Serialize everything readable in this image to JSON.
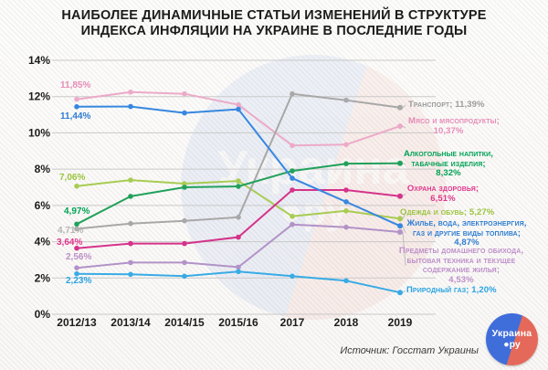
{
  "title": {
    "line1": "НАИБОЛЕЕ ДИНАМИЧНЫЕ СТАТЬИ ИЗМЕНЕНИЙ В СТРУКТУРЕ",
    "line2": "ИНДЕКСА ИНФЛЯЦИИ НА УКРАИНЕ В ПОСЛЕДНИЕ ГОДЫ"
  },
  "source": "Источник: Госстат Украины",
  "logo": {
    "line1": "Украина",
    "line2": "●ру",
    "blue": "#3f6edb",
    "coral": "#e4695a"
  },
  "watermark": {
    "line1": "Украина",
    "line2": "●ру"
  },
  "chart_data": {
    "type": "line",
    "categories": [
      "2012/13",
      "2013/14",
      "2014/15",
      "2015/16",
      "2017",
      "2018",
      "2019"
    ],
    "yticks": [
      "0%",
      "2%",
      "4%",
      "6%",
      "8%",
      "10%",
      "12%",
      "14%"
    ],
    "ylim": [
      0,
      14
    ],
    "ytick_step": 2,
    "grid": "horizontal",
    "grid_color": "#c9c9c9",
    "axis_text_color": "#1c1c1c",
    "legend_position": "right-of-lines",
    "series": [
      {
        "name": "Транспорт",
        "color": "#a8a8a8",
        "text_color": "#9b9b9b",
        "start_color": "#b5b5b5",
        "values": [
          4.71,
          5.0,
          5.15,
          5.35,
          12.15,
          11.8,
          11.39
        ],
        "start_label": "4,71%",
        "end_label_lines": [
          "Транспорт; 11,39%"
        ]
      },
      {
        "name": "Мясо и мясопродукты",
        "color": "#ecaac8",
        "text_color": "#e68cb8",
        "start_color": "#e68cb8",
        "values": [
          11.85,
          12.25,
          12.15,
          11.55,
          9.3,
          9.35,
          10.37
        ],
        "start_label": "11,85%",
        "end_label_lines": [
          "Мясо и мясопродукты;",
          "10,37%"
        ]
      },
      {
        "name": "Алкогольные напитки, табачные изделия",
        "color": "#22a15b",
        "text_color": "#00a155",
        "start_color": "#00a155",
        "values": [
          4.97,
          6.5,
          7.0,
          7.05,
          7.9,
          8.3,
          8.32
        ],
        "start_label": "4,97%",
        "end_label_lines": [
          "Алкогольные напитки,",
          "табачные изделия;",
          "8,32%"
        ]
      },
      {
        "name": "Охрана здоровья",
        "color": "#d5338b",
        "text_color": "#e0368c",
        "start_color": "#e0368c",
        "values": [
          3.64,
          3.9,
          3.9,
          4.25,
          6.85,
          6.85,
          6.51
        ],
        "start_label": "3,64%",
        "end_label_lines": [
          "Охрана здоровья;",
          "6,51%"
        ]
      },
      {
        "name": "Одежда и обувь",
        "color": "#a8cc52",
        "text_color": "#9ac43e",
        "start_color": "#9ac43e",
        "values": [
          7.06,
          7.4,
          7.2,
          7.35,
          5.4,
          5.7,
          5.27
        ],
        "start_label": "7,06%",
        "end_label_lines": [
          "Одежда и обувь; 5,27%"
        ]
      },
      {
        "name": "Жилье, вода, электроэнергия, газ и другие виды топлива",
        "color": "#3787e0",
        "text_color": "#2e7dd1",
        "start_color": "#2e7dd1",
        "values": [
          11.44,
          11.45,
          11.1,
          11.3,
          7.5,
          6.2,
          4.87
        ],
        "start_label": "11,44%",
        "end_label_lines": [
          "Жилье, вода, электроэнергия,",
          "газ и другие виды топлива;",
          "4,87%"
        ]
      },
      {
        "name": "Предметы домашнего обихода, бытовая техника и текущее содержание жилья",
        "color": "#b292c8",
        "text_color": "#bd8fc9",
        "start_color": "#bd8fc9",
        "values": [
          2.56,
          2.85,
          2.85,
          2.6,
          4.95,
          4.8,
          4.53
        ],
        "start_label": "2,56%",
        "end_label_lines": [
          "Предметы домашнего обихода,",
          "бытовая техника и текущее",
          "содержание жилья;",
          "4,53%"
        ]
      },
      {
        "name": "Природный газ",
        "color": "#39abe5",
        "text_color": "#29a3e3",
        "start_color": "#29a3e3",
        "values": [
          2.23,
          2.2,
          2.1,
          2.35,
          2.1,
          1.85,
          1.2
        ],
        "start_label": "2,23%",
        "end_label_lines": [
          "Природный газ; 1,20%"
        ]
      }
    ]
  }
}
